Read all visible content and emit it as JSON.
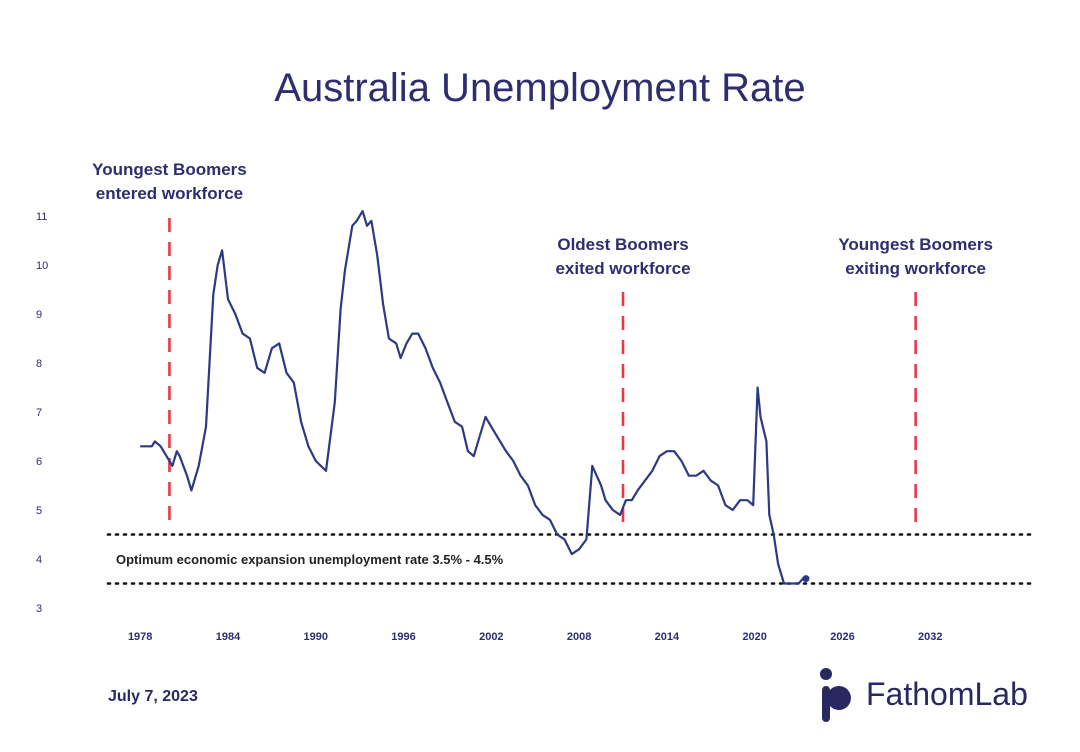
{
  "chart_data": {
    "type": "line",
    "title": "Australia Unemployment Rate",
    "xlabel": "",
    "ylabel": "",
    "xlim": [
      1975.8,
      2039.5
    ],
    "ylim": [
      3,
      11.5
    ],
    "x_ticks": [
      "1978",
      "1984",
      "1990",
      "1996",
      "2002",
      "2008",
      "2014",
      "2020",
      "2026",
      "2032"
    ],
    "y_ticks": [
      "3",
      "4",
      "5",
      "6",
      "7",
      "8",
      "9",
      "10",
      "11"
    ],
    "grid": false,
    "series": [
      {
        "color": "#2b3a82",
        "x": [
          1978.0,
          1978.8,
          1979.0,
          1979.4,
          1979.8,
          1980.2,
          1980.5,
          1980.7,
          1981.2,
          1981.5,
          1982.0,
          1982.5,
          1983.0,
          1983.3,
          1983.6,
          1984.0,
          1984.5,
          1985.0,
          1985.5,
          1986.0,
          1986.5,
          1987.0,
          1987.5,
          1988.0,
          1988.5,
          1989.0,
          1989.5,
          1990.0,
          1990.7,
          1991.3,
          1991.7,
          1992.0,
          1992.5,
          1992.8,
          1993.2,
          1993.5,
          1993.8,
          1994.2,
          1994.6,
          1995.0,
          1995.5,
          1995.8,
          1996.2,
          1996.6,
          1997.0,
          1997.5,
          1998.0,
          1998.5,
          1999.0,
          1999.5,
          2000.0,
          2000.4,
          2000.8,
          2001.2,
          2001.6,
          2002.0,
          2002.6,
          2003.0,
          2003.5,
          2004.0,
          2004.5,
          2005.0,
          2005.5,
          2006.0,
          2006.5,
          2007.0,
          2007.5,
          2008.0,
          2008.5,
          2008.9,
          2009.2,
          2009.5,
          2009.8,
          2010.3,
          2010.8,
          2011.2,
          2011.6,
          2012.0,
          2012.5,
          2013.0,
          2013.5,
          2014.0,
          2014.5,
          2015.0,
          2015.5,
          2016.0,
          2016.5,
          2017.0,
          2017.5,
          2018.0,
          2018.5,
          2019.0,
          2019.5,
          2019.9,
          2020.2,
          2020.4,
          2020.8,
          2021.0,
          2021.3,
          2021.6,
          2022.0,
          2022.3,
          2022.6,
          2023.0,
          2023.3,
          2023.5
        ],
        "values": [
          6.3,
          6.3,
          6.4,
          6.3,
          6.1,
          5.9,
          6.2,
          6.1,
          5.7,
          5.4,
          5.9,
          6.7,
          9.4,
          10.0,
          10.3,
          9.3,
          9.0,
          8.6,
          8.5,
          7.9,
          7.8,
          8.3,
          8.4,
          7.8,
          7.6,
          6.8,
          6.3,
          6.0,
          5.8,
          7.2,
          9.1,
          9.9,
          10.8,
          10.9,
          11.1,
          10.8,
          10.9,
          10.2,
          9.2,
          8.5,
          8.4,
          8.1,
          8.4,
          8.6,
          8.6,
          8.3,
          7.9,
          7.6,
          7.2,
          6.8,
          6.7,
          6.2,
          6.1,
          6.5,
          6.9,
          6.7,
          6.4,
          6.2,
          6.0,
          5.7,
          5.5,
          5.1,
          4.9,
          4.8,
          4.5,
          4.4,
          4.1,
          4.2,
          4.4,
          5.9,
          5.7,
          5.5,
          5.2,
          5.0,
          4.9,
          5.2,
          5.2,
          5.4,
          5.6,
          5.8,
          6.1,
          6.2,
          6.2,
          6.0,
          5.7,
          5.7,
          5.8,
          5.6,
          5.5,
          5.1,
          5.0,
          5.2,
          5.2,
          5.1,
          7.5,
          6.9,
          6.4,
          4.9,
          4.5,
          3.9,
          3.5,
          3.5,
          3.5,
          3.5,
          3.6,
          3.6
        ]
      }
    ],
    "reference_bands": {
      "label": "Optimum economic expansion unemployment rate 3.5% - 4.5%",
      "low": 3.5,
      "high": 4.5
    },
    "annotations": [
      {
        "x": 1980.0,
        "line1": "Youngest Boomers",
        "line2": "entered workforce"
      },
      {
        "x": 2011.0,
        "line1": "Oldest Boomers",
        "line2": "exited workforce"
      },
      {
        "x": 2031.0,
        "line1": "Youngest Boomers",
        "line2": "exiting workforce"
      }
    ]
  },
  "footer": {
    "date": "July 7, 2023",
    "brand": "FathomLab"
  },
  "colors": {
    "line": "#2b3a82",
    "marker": "#e63946",
    "title": "#2e2d6e"
  }
}
